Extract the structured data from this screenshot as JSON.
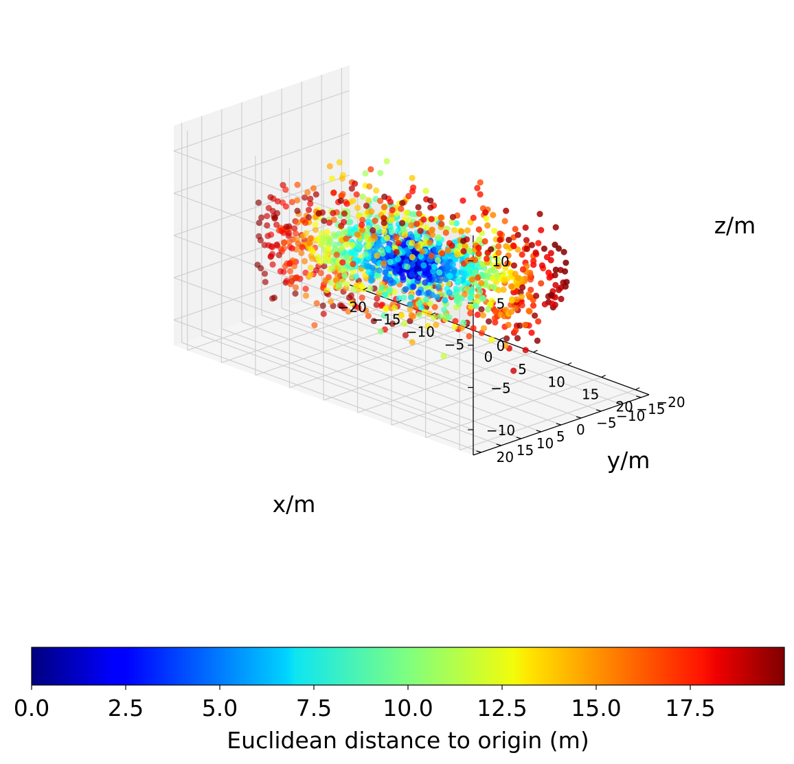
{
  "chart_data": {
    "type": "scatter",
    "projection": "3d",
    "xlabel": "x/m",
    "ylabel": "y/m",
    "zlabel": "z/m",
    "xlim": [
      -22,
      22
    ],
    "ylim": [
      -22,
      22
    ],
    "zlim": [
      -13,
      13
    ],
    "x_ticks": [
      -20,
      -15,
      -10,
      -5,
      0,
      5,
      10,
      15,
      20
    ],
    "x_tick_labels": [
      "−20",
      "−15",
      "−10",
      "−5",
      "0",
      "5",
      "10",
      "15",
      "20"
    ],
    "y_ticks": [
      -20,
      -15,
      -10,
      -5,
      0,
      5,
      10,
      15,
      20
    ],
    "y_tick_labels": [
      "−20",
      "−15",
      "−10",
      "−5",
      "0",
      "5",
      "10",
      "15",
      "20"
    ],
    "z_ticks": [
      -10,
      -5,
      0,
      5,
      10
    ],
    "z_tick_labels": [
      "−10",
      "−5",
      "0",
      "5",
      "10"
    ],
    "grid": true,
    "colormap": "jet",
    "color_value": "Euclidean distance to origin (m)",
    "num_points_approx": 1600,
    "distribution": "flattened disk centered on origin, radius up to ~20 m, z mostly within ±4 m",
    "colorbar": {
      "label": "Euclidean distance to origin (m)",
      "range": [
        0,
        20
      ],
      "ticks": [
        0,
        2.5,
        5,
        7.5,
        10,
        12.5,
        15,
        17.5
      ],
      "tick_labels": [
        "0.0",
        "2.5",
        "5.0",
        "7.5",
        "10.0",
        "12.5",
        "15.0",
        "17.5"
      ],
      "orientation": "horizontal"
    }
  }
}
